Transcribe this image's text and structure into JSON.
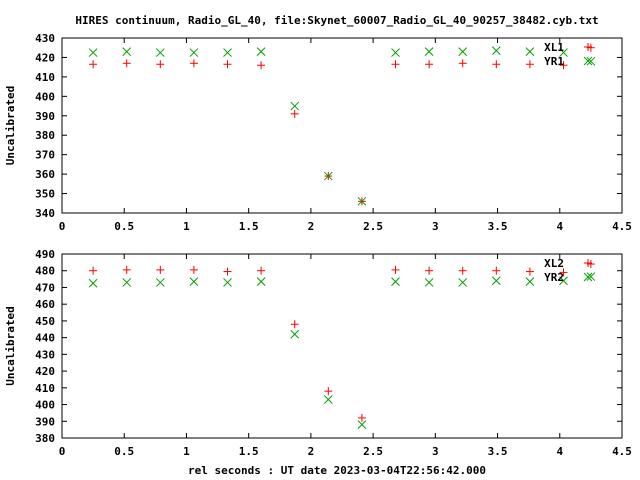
{
  "title": "HIRES continuum, Radio_GL_40, file:Skynet_60007_Radio_GL_40_90257_38482.cyb.txt",
  "xlabel": "rel seconds : UT date 2023-03-04T22:56:42.000",
  "colors": {
    "red": "#ff0000",
    "green": "#00a000",
    "axis": "#000000"
  },
  "chart_data": [
    {
      "type": "scatter",
      "ylabel": "Uncalibrated",
      "xlim": [
        0,
        4.5
      ],
      "ylim": [
        340,
        430
      ],
      "xticks": [
        "0",
        "0.5",
        "1",
        "1.5",
        "2",
        "2.5",
        "3",
        "3.5",
        "4",
        "4.5"
      ],
      "yticks": [
        "340",
        "350",
        "360",
        "370",
        "380",
        "390",
        "400",
        "410",
        "420",
        "430"
      ],
      "legend_position": "top-right",
      "series": [
        {
          "name": "XL1",
          "marker": "plus",
          "color": "#ff0000",
          "x": [
            0.25,
            0.52,
            0.79,
            1.06,
            1.33,
            1.6,
            1.87,
            2.14,
            2.41,
            2.68,
            2.95,
            3.22,
            3.49,
            3.76,
            4.03,
            4.25
          ],
          "y": [
            416.5,
            417,
            416.5,
            417,
            416.5,
            416,
            391,
            359,
            346,
            416.5,
            416.5,
            417,
            416.5,
            416.5,
            416,
            425
          ]
        },
        {
          "name": "YR1",
          "marker": "cross",
          "color": "#00a000",
          "x": [
            0.25,
            0.52,
            0.79,
            1.06,
            1.33,
            1.6,
            1.87,
            2.14,
            2.41,
            2.68,
            2.95,
            3.22,
            3.49,
            3.76,
            4.03,
            4.25
          ],
          "y": [
            422.5,
            423,
            422.5,
            422.5,
            422.5,
            423,
            395,
            359,
            346,
            422.5,
            423,
            423,
            423.5,
            423,
            422.5,
            418
          ]
        }
      ]
    },
    {
      "type": "scatter",
      "ylabel": "Uncalibrated",
      "xlim": [
        0,
        4.5
      ],
      "ylim": [
        380,
        490
      ],
      "xticks": [
        "0",
        "0.5",
        "1",
        "1.5",
        "2",
        "2.5",
        "3",
        "3.5",
        "4",
        "4.5"
      ],
      "yticks": [
        "380",
        "390",
        "400",
        "410",
        "420",
        "430",
        "440",
        "450",
        "460",
        "470",
        "480",
        "490"
      ],
      "legend_position": "top-right",
      "series": [
        {
          "name": "XL2",
          "marker": "plus",
          "color": "#ff0000",
          "x": [
            0.25,
            0.52,
            0.79,
            1.06,
            1.33,
            1.6,
            1.87,
            2.14,
            2.41,
            2.68,
            2.95,
            3.22,
            3.49,
            3.76,
            4.03,
            4.25
          ],
          "y": [
            480,
            480.5,
            480.5,
            480.5,
            479.5,
            480,
            448,
            408,
            392,
            480.5,
            480,
            480,
            480,
            479.5,
            479,
            484
          ]
        },
        {
          "name": "YR2",
          "marker": "cross",
          "color": "#00a000",
          "x": [
            0.25,
            0.52,
            0.79,
            1.06,
            1.33,
            1.6,
            1.87,
            2.14,
            2.41,
            2.68,
            2.95,
            3.22,
            3.49,
            3.76,
            4.03,
            4.25
          ],
          "y": [
            472.5,
            473,
            473,
            473.5,
            473,
            473.5,
            442,
            403,
            388,
            473.5,
            473,
            473,
            474,
            473.5,
            474,
            476.5
          ]
        }
      ]
    }
  ]
}
